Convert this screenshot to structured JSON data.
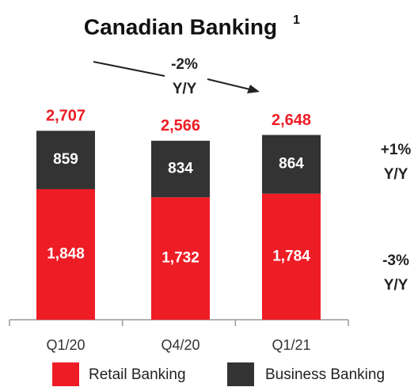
{
  "chart_data": {
    "type": "stacked_bar",
    "title": "Canadian Banking",
    "title_footnote": "1",
    "categories": [
      "Q1/20",
      "Q4/20",
      "Q1/21"
    ],
    "series": [
      {
        "name": "Retail Banking",
        "color": "#ee1c25",
        "values": [
          1848,
          1732,
          1784
        ],
        "value_labels": [
          "1,848",
          "1,732",
          "1,784"
        ]
      },
      {
        "name": "Business Banking",
        "color": "#333333",
        "values": [
          859,
          834,
          864
        ]
      }
    ],
    "totals": [
      2707,
      2566,
      2648
    ],
    "total_labels": [
      "2,707",
      "2,566",
      "2,648"
    ],
    "total_color": "#ee1c25",
    "annotations": [
      [
        "-2%",
        "Y/Y"
      ],
      [
        "+1%",
        "Y/Y"
      ],
      [
        "-3%",
        "Y/Y"
      ]
    ]
  }
}
